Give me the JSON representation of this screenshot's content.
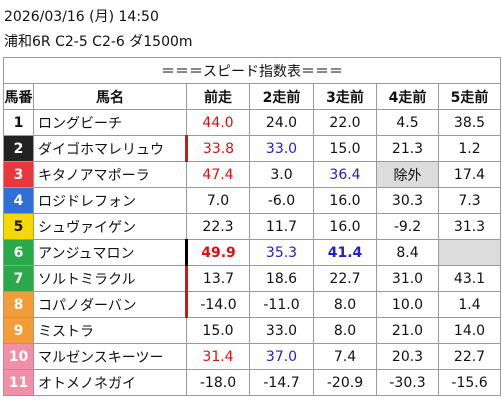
{
  "header": {
    "datetime": "2026/03/16 (月) 14:50",
    "race": "浦和6R C2-5 C2-6 ダ1500m"
  },
  "table": {
    "title": "＝＝＝スピード指数表＝＝＝",
    "columns": [
      "馬番",
      "馬名",
      "前走",
      "2走前",
      "3走前",
      "4走前",
      "5走前"
    ],
    "rows": [
      {
        "number": "1",
        "name": "ロングビーチ",
        "frame_color": "#ffffff",
        "cells": [
          {
            "text": "44.0",
            "color": "red"
          },
          "24.0",
          "22.0",
          "4.5",
          "38.5"
        ]
      },
      {
        "number": "2",
        "name": "ダイゴホマレリュウ",
        "frame_color": "#222222",
        "marker": "red",
        "cells": [
          {
            "text": "33.8",
            "color": "red"
          },
          {
            "text": "33.0",
            "color": "blue"
          },
          "15.0",
          "21.3",
          "1.2"
        ]
      },
      {
        "number": "3",
        "name": "キタノアマポーラ",
        "frame_color": "#e8383d",
        "cells": [
          {
            "text": "47.4",
            "color": "red"
          },
          "3.0",
          {
            "text": "36.4",
            "color": "blue"
          },
          {
            "text": "除外",
            "shade": true
          },
          "17.4"
        ]
      },
      {
        "number": "4",
        "name": "ロジドレフォン",
        "frame_color": "#2f6fd6",
        "cells": [
          "7.0",
          "-6.0",
          "16.0",
          "30.3",
          "7.3"
        ]
      },
      {
        "number": "5",
        "name": "シュヴァイゲン",
        "frame_color": "#f5d800",
        "cells": [
          "22.3",
          "11.7",
          "16.0",
          "-9.2",
          "31.3"
        ]
      },
      {
        "number": "6",
        "name": "アンジュマロン",
        "frame_color": "#2aa84a",
        "marker": "black",
        "cells": [
          {
            "text": "49.9",
            "color": "red",
            "bold": true
          },
          {
            "text": "35.3",
            "color": "blue"
          },
          {
            "text": "41.4",
            "color": "blue",
            "bold": true
          },
          "8.4",
          null
        ]
      },
      {
        "number": "7",
        "name": "ソルトミラクル",
        "frame_color": "#2aa84a",
        "marker": "red",
        "cells": [
          "13.7",
          "18.6",
          "22.7",
          "31.0",
          "43.1"
        ]
      },
      {
        "number": "8",
        "name": "コパノダーバン",
        "frame_color": "#f39c3a",
        "marker": "red",
        "cells": [
          "-14.0",
          "-11.0",
          "8.0",
          "10.0",
          "1.4"
        ]
      },
      {
        "number": "9",
        "name": "ミストラ",
        "frame_color": "#f39c3a",
        "cells": [
          "15.0",
          "33.0",
          "8.0",
          "21.0",
          "14.0"
        ]
      },
      {
        "number": "10",
        "name": "マルゼンスキーツー",
        "frame_color": "#f28fa8",
        "cells": [
          {
            "text": "31.4",
            "color": "red"
          },
          {
            "text": "37.0",
            "color": "blue"
          },
          "7.4",
          "20.3",
          "22.7"
        ]
      },
      {
        "number": "11",
        "name": "オトメノネガイ",
        "frame_color": "#f28fa8",
        "cells": [
          "-18.0",
          "-14.7",
          "-20.9",
          "-30.3",
          "-15.6"
        ]
      }
    ]
  }
}
